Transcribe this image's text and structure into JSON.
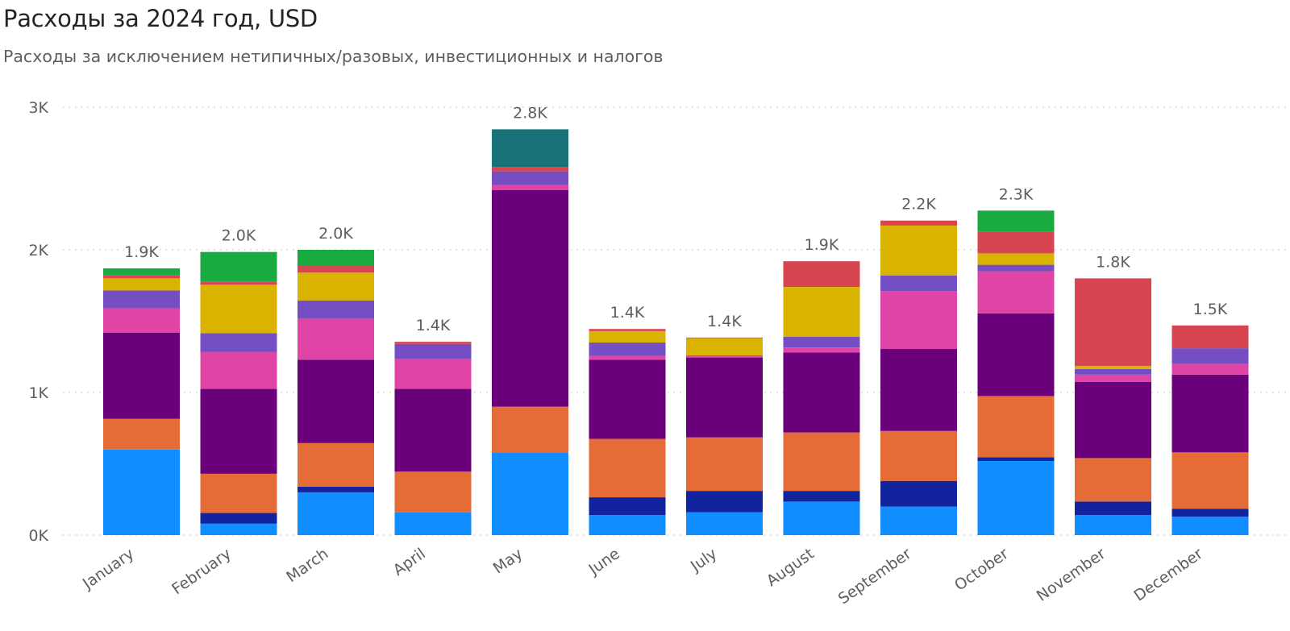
{
  "chart_data": {
    "type": "bar",
    "stacked": true,
    "title": "Расходы за 2024 год, USD",
    "subtitle": "Расходы за исключением нетипичных/разовых, инвестиционных и налогов",
    "categories": [
      "January",
      "February",
      "March",
      "April",
      "May",
      "June",
      "July",
      "August",
      "September",
      "October",
      "November",
      "December"
    ],
    "totals_labels": [
      "1.9K",
      "2.0K",
      "2.0K",
      "1.4K",
      "2.8K",
      "1.4K",
      "1.4K",
      "1.9K",
      "2.2K",
      "2.3K",
      "1.8K",
      "1.5K"
    ],
    "y_ticks": [
      0,
      1000,
      2000,
      3000
    ],
    "y_tick_labels": [
      "0K",
      "1K",
      "2K",
      "3K"
    ],
    "ylim": [
      0,
      3000
    ],
    "grid": true,
    "series": [
      {
        "color": "#118DFF",
        "values": [
          600,
          80,
          300,
          160,
          580,
          140,
          160,
          235,
          200,
          520,
          140,
          130
        ]
      },
      {
        "color": "#12239E",
        "values": [
          0,
          75,
          40,
          0,
          0,
          125,
          150,
          75,
          180,
          25,
          95,
          55
        ]
      },
      {
        "color": "#E66C37",
        "values": [
          215,
          275,
          305,
          285,
          320,
          410,
          375,
          410,
          350,
          430,
          305,
          395
        ]
      },
      {
        "color": "#6B007B",
        "values": [
          605,
          595,
          585,
          580,
          1520,
          555,
          560,
          560,
          575,
          580,
          535,
          545
        ]
      },
      {
        "color": "#E044A7",
        "values": [
          170,
          260,
          290,
          210,
          35,
          25,
          15,
          35,
          405,
          295,
          50,
          75
        ]
      },
      {
        "color": "#744EC2",
        "values": [
          125,
          130,
          125,
          105,
          95,
          95,
          0,
          75,
          110,
          45,
          40,
          110
        ]
      },
      {
        "color": "#D9B300",
        "values": [
          85,
          340,
          195,
          0,
          0,
          80,
          120,
          350,
          350,
          80,
          20,
          0
        ]
      },
      {
        "color": "#D64550",
        "values": [
          20,
          20,
          50,
          15,
          30,
          15,
          5,
          180,
          35,
          150,
          615,
          160
        ]
      },
      {
        "color": "#197278",
        "values": [
          0,
          0,
          0,
          0,
          265,
          0,
          0,
          0,
          0,
          0,
          0,
          0
        ]
      },
      {
        "color": "#1AAB40",
        "values": [
          50,
          210,
          110,
          0,
          0,
          0,
          0,
          0,
          0,
          150,
          0,
          0
        ]
      }
    ]
  }
}
